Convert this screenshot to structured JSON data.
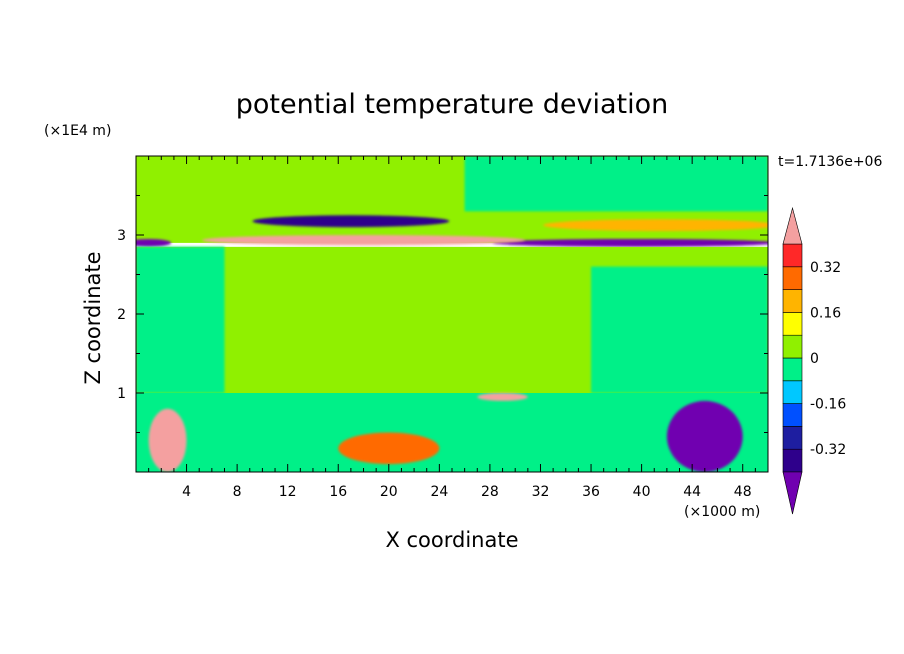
{
  "chart_data": {
    "type": "heatmap",
    "title": "potential temperature deviation",
    "xlabel": "X coordinate",
    "ylabel": "Z coordinate",
    "x_unit": "(×1000 m)",
    "y_unit": "(×1E4 m)",
    "time_label": "t=1.7136e+06",
    "xlim": [
      0,
      50
    ],
    "ylim": [
      0,
      4
    ],
    "x_ticks": [
      4,
      8,
      12,
      16,
      20,
      24,
      28,
      32,
      36,
      40,
      44,
      48
    ],
    "y_ticks": [
      1,
      2,
      3
    ],
    "colorbar": {
      "levels": [
        -0.4,
        -0.32,
        -0.24,
        -0.16,
        -0.08,
        0,
        0.08,
        0.16,
        0.24,
        0.32,
        0.4
      ],
      "labels": [
        "0.32",
        "0.16",
        "0",
        "-0.16",
        "-0.32"
      ],
      "label_values": [
        0.32,
        0.16,
        0,
        -0.16,
        -0.32
      ],
      "colors_low_to_high": [
        "#2e008b",
        "#1e1ea0",
        "#0050ff",
        "#00c8ff",
        "#00f088",
        "#90f000",
        "#ffff00",
        "#ffb400",
        "#ff6a00",
        "#ff2828"
      ],
      "under_color": "#7000b0",
      "over_color": "#f4a0a0"
    },
    "regions": [
      {
        "desc": "upper background",
        "x": [
          0,
          50
        ],
        "y": [
          2.9,
          4.0
        ],
        "value": 0.04
      },
      {
        "desc": "top right band",
        "x": [
          26,
          50
        ],
        "y": [
          3.3,
          4.0
        ],
        "value": -0.02
      },
      {
        "desc": "layer cold anomaly left",
        "x": [
          0,
          2
        ],
        "y": [
          2.85,
          2.95
        ],
        "value": -0.45
      },
      {
        "desc": "layer cold anomaly right",
        "x": [
          29,
          50
        ],
        "y": [
          2.85,
          2.95
        ],
        "value": -0.45
      },
      {
        "desc": "warm anomaly near 3",
        "x": [
          6,
          30
        ],
        "y": [
          2.87,
          3.0
        ],
        "value": 0.45
      },
      {
        "desc": "cold lens upper left",
        "x": [
          10,
          24
        ],
        "y": [
          3.1,
          3.25
        ],
        "value": -0.34
      },
      {
        "desc": "warm lens upper right",
        "x": [
          33,
          50
        ],
        "y": [
          3.05,
          3.2
        ],
        "value": 0.2
      },
      {
        "desc": "mid background",
        "x": [
          0,
          50
        ],
        "y": [
          1.0,
          2.85
        ],
        "value": 0.04
      },
      {
        "desc": "mid cool region",
        "x": [
          0,
          7
        ],
        "y": [
          1.0,
          2.85
        ],
        "value": -0.02
      },
      {
        "desc": "mid cool region right",
        "x": [
          36,
          50
        ],
        "y": [
          1.0,
          2.6
        ],
        "value": -0.02
      },
      {
        "desc": "lower background",
        "x": [
          0,
          50
        ],
        "y": [
          0.0,
          1.0
        ],
        "value": -0.02
      },
      {
        "desc": "warm blob left",
        "x": [
          1,
          4
        ],
        "y": [
          0.0,
          0.8
        ],
        "value": 0.45
      },
      {
        "desc": "warm blob center",
        "x": [
          16,
          24
        ],
        "y": [
          0.1,
          0.5
        ],
        "value": 0.24
      },
      {
        "desc": "cold blob right",
        "x": [
          42,
          48
        ],
        "y": [
          0.0,
          0.9
        ],
        "value": -0.45
      },
      {
        "desc": "warm band near 1",
        "x": [
          27,
          31
        ],
        "y": [
          0.9,
          1.0
        ],
        "value": 0.45
      }
    ]
  }
}
